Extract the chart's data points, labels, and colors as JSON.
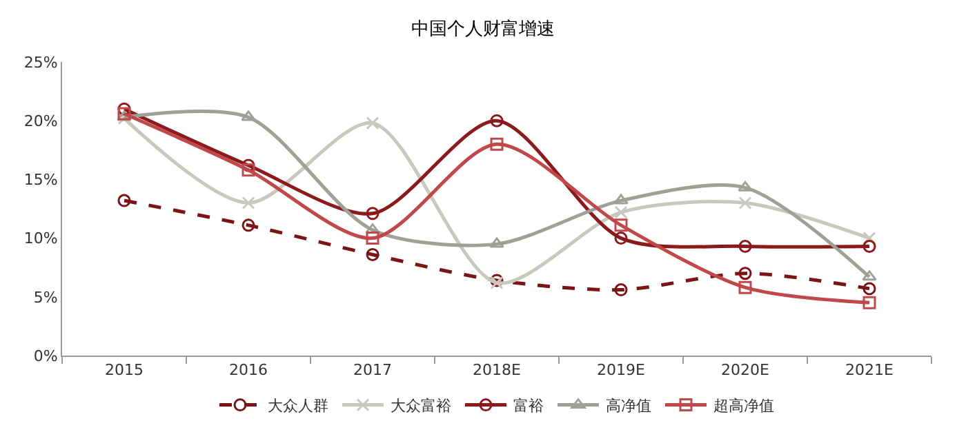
{
  "chart_data": {
    "type": "line",
    "title": "中国个人财富增速",
    "categories": [
      "2015",
      "2016",
      "2017",
      "2018E",
      "2019E",
      "2020E",
      "2021E"
    ],
    "series": [
      {
        "name": "大众人群",
        "color": "#7b1416",
        "marker": "circle",
        "line_style": "dashed",
        "values": [
          13.2,
          11.1,
          8.6,
          6.4,
          5.6,
          7.0,
          5.7
        ]
      },
      {
        "name": "大众富裕",
        "color": "#c8c8be",
        "marker": "cross",
        "line_style": "solid",
        "values": [
          20.2,
          13.0,
          19.8,
          6.2,
          12.2,
          13.0,
          10.0
        ]
      },
      {
        "name": "富裕",
        "color": "#8b1a1c",
        "marker": "circle",
        "line_style": "solid",
        "values": [
          21.0,
          16.2,
          12.1,
          20.0,
          10.0,
          9.3,
          9.3
        ]
      },
      {
        "name": "高净值",
        "color": "#a0a098",
        "marker": "triangle",
        "line_style": "solid",
        "values": [
          20.3,
          20.3,
          10.7,
          9.5,
          13.2,
          14.3,
          6.7
        ]
      },
      {
        "name": "超高净值",
        "color": "#c0484a",
        "marker": "square",
        "line_style": "solid",
        "values": [
          20.6,
          15.8,
          10.0,
          18.0,
          11.1,
          5.8,
          4.5
        ]
      }
    ],
    "ylim": [
      0,
      25
    ],
    "yticks": [
      {
        "value": 0,
        "label": "0%"
      },
      {
        "value": 5,
        "label": "5%"
      },
      {
        "value": 10,
        "label": "10%"
      },
      {
        "value": 15,
        "label": "15%"
      },
      {
        "value": 20,
        "label": "20%"
      },
      {
        "value": 25,
        "label": "25%"
      }
    ],
    "legend": "bottom"
  }
}
